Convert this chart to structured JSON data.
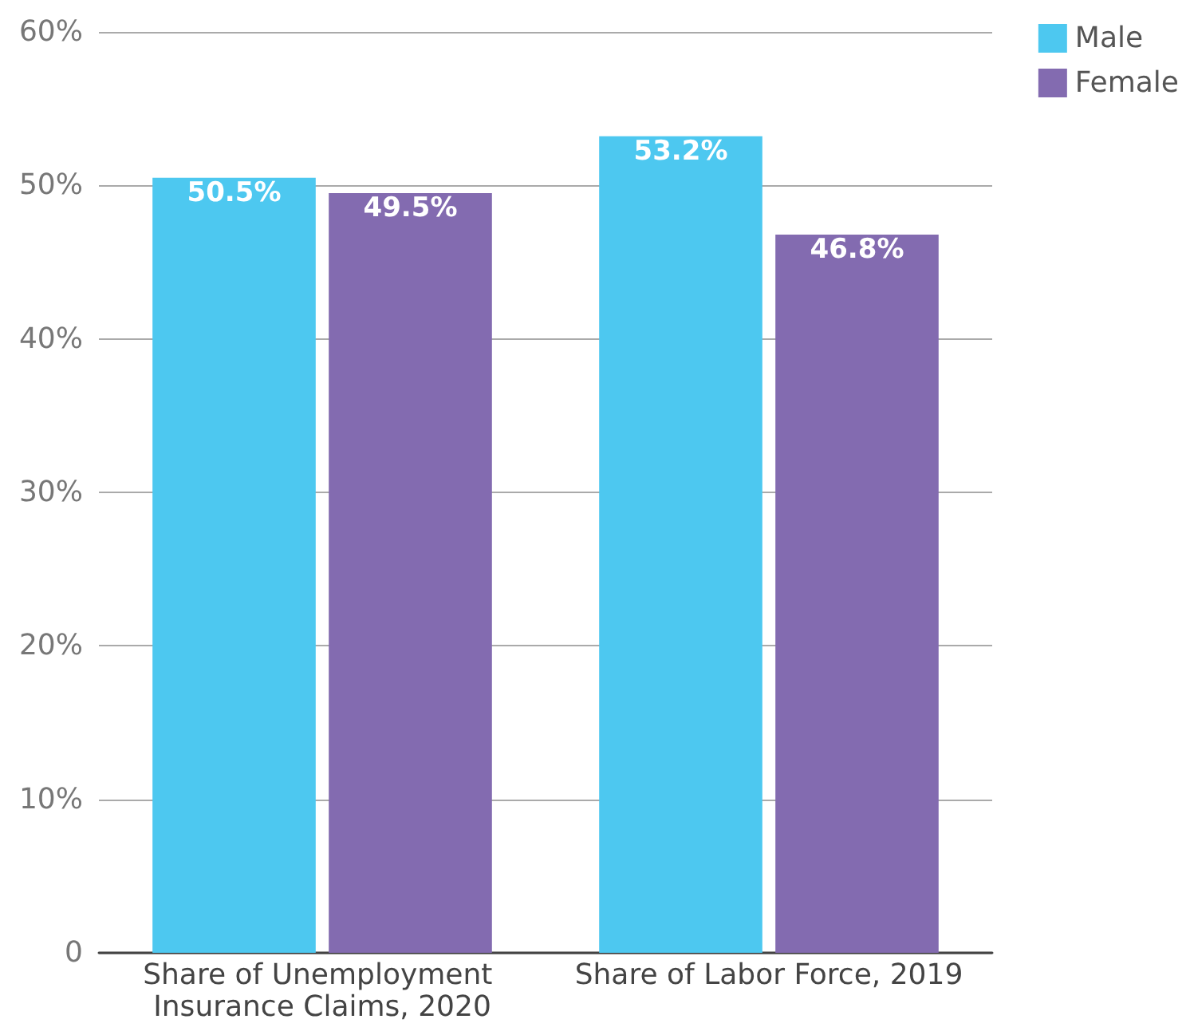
{
  "chart_data": {
    "type": "bar",
    "categories": [
      "Share of Unemployment Insurance Claims, 2020",
      "Share of Labor Force, 2019"
    ],
    "series": [
      {
        "name": "Male",
        "color": "#4dc8f0",
        "values": [
          50.5,
          53.2
        ],
        "value_labels": [
          "50.5%",
          "53.2%"
        ]
      },
      {
        "name": "Female",
        "color": "#836bb0",
        "values": [
          49.5,
          46.8
        ],
        "value_labels": [
          "49.5%",
          "46.8%"
        ]
      }
    ],
    "ylim": [
      0,
      60
    ],
    "yticks": [
      {
        "value": 0,
        "label": "0"
      },
      {
        "value": 10,
        "label": "10%"
      },
      {
        "value": 20,
        "label": "20%"
      },
      {
        "value": 30,
        "label": "30%"
      },
      {
        "value": 40,
        "label": "40%"
      },
      {
        "value": 50,
        "label": "50%"
      },
      {
        "value": 60,
        "label": "60%"
      }
    ],
    "grid": "y",
    "legend": "top right"
  }
}
